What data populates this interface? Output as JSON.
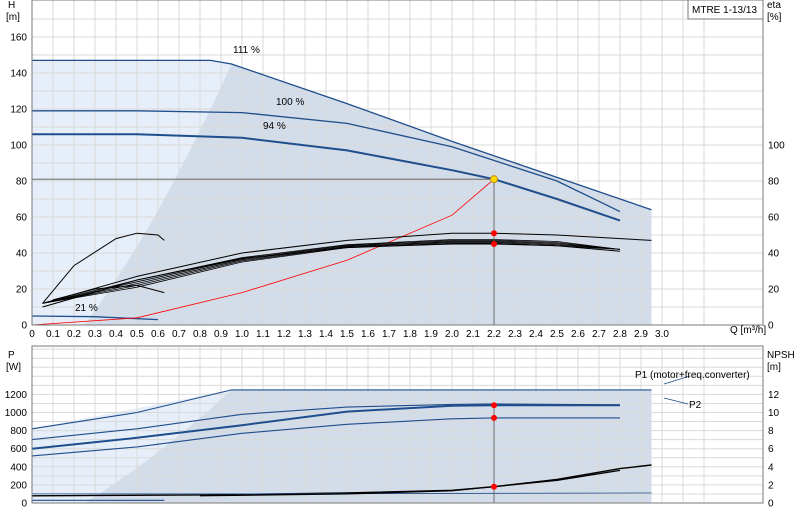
{
  "colors": {
    "curve_dark": "#1f4e8c",
    "curve_mid": "#3b6aa5",
    "region_light": "#e6eef9",
    "region_mid": "#d3dce9",
    "system_curve": "#ff0000",
    "duty_point": "#ff0000",
    "duty_point_yellow": "#ffd700",
    "grid": "#d9d9d9",
    "black": "#000000"
  },
  "chart_data": [
    {
      "type": "line",
      "title": "MTRE 1-13/13",
      "ylabel": "H",
      "yunit": "[m]",
      "y2label": "eta",
      "y2unit": "[%]",
      "xlabel": "Q [m³/h]",
      "xlim": [
        0,
        3.3
      ],
      "ylim": [
        0,
        170
      ],
      "y2lim": [
        0,
        170
      ],
      "grid": true,
      "x_ticks": [
        "0",
        "0.1",
        "0.2",
        "0.3",
        "0.4",
        "0.5",
        "0.6",
        "0.7",
        "0.8",
        "0.9",
        "1.0",
        "1.1",
        "1.2",
        "1.3",
        "1.4",
        "1.5",
        "1.6",
        "1.7",
        "1.8",
        "1.9",
        "2.0",
        "2.1",
        "2.2",
        "2.3",
        "2.4",
        "2.5",
        "2.6",
        "2.7",
        "2.8",
        "2.9",
        "3.0"
      ],
      "y_ticks": [
        "0",
        "20",
        "40",
        "60",
        "80",
        "100",
        "120",
        "140",
        "160"
      ],
      "y2_ticks": [
        "0",
        "20",
        "40",
        "60",
        "80",
        "100"
      ],
      "curve_labels": [
        "111 %",
        "100 %",
        "94 %",
        "21 %"
      ],
      "duty_point": {
        "x": 2.2,
        "head": 81,
        "eta_upper": 51,
        "eta_lower": 45
      },
      "series": [
        {
          "name": "111 %",
          "kind": "head",
          "x": [
            0,
            0.5,
            0.85,
            0.95,
            1.5,
            2.0,
            2.5,
            2.95
          ],
          "y": [
            147,
            147,
            147,
            145,
            123,
            102,
            82,
            64
          ]
        },
        {
          "name": "100 %",
          "kind": "head",
          "x": [
            0,
            0.5,
            1.0,
            1.5,
            2.0,
            2.5,
            2.8
          ],
          "y": [
            119,
            119,
            118,
            112,
            99,
            80,
            63
          ]
        },
        {
          "name": "94 %",
          "kind": "head",
          "x": [
            0,
            0.5,
            1.0,
            1.5,
            2.0,
            2.2,
            2.5,
            2.8
          ],
          "y": [
            106,
            106,
            104,
            97,
            86,
            81,
            70,
            58
          ]
        },
        {
          "name": "21 %",
          "kind": "head",
          "x": [
            0,
            0.3,
            0.6
          ],
          "y": [
            5,
            4.6,
            3
          ]
        },
        {
          "kind": "system",
          "x": [
            0,
            0.5,
            1.0,
            1.5,
            2.0,
            2.2
          ],
          "y": [
            0,
            4,
            18,
            36,
            61,
            81
          ]
        },
        {
          "kind": "eta",
          "x": [
            0.05,
            0.2,
            0.4,
            0.5,
            0.6,
            0.63
          ],
          "y": [
            12,
            33,
            48,
            51,
            50,
            47
          ]
        },
        {
          "kind": "eta",
          "x": [
            0.05,
            0.5,
            1.0,
            1.5,
            2.0,
            2.2,
            2.5,
            2.95
          ],
          "y": [
            12,
            27,
            40,
            47,
            51,
            51,
            50,
            47
          ]
        },
        {
          "kind": "eta",
          "x": [
            0.05,
            0.5,
            1.0,
            1.5,
            2.0,
            2.2,
            2.5,
            2.8
          ],
          "y": [
            10,
            25,
            37,
            43,
            45,
            45,
            44,
            41
          ]
        },
        {
          "kind": "eta",
          "x": [
            0.1,
            0.3,
            0.5,
            0.63
          ],
          "y": [
            14,
            20,
            22,
            18
          ]
        }
      ]
    },
    {
      "type": "line",
      "ylabel": "P",
      "yunit": "[W]",
      "y2label": "NPSH",
      "y2unit": "[m]",
      "xlim": [
        0,
        3.3
      ],
      "ylim": [
        0,
        1400
      ],
      "y2lim": [
        0,
        14
      ],
      "grid": true,
      "y_ticks": [
        "0",
        "200",
        "400",
        "600",
        "800",
        "1000",
        "1200"
      ],
      "y2_ticks": [
        "0",
        "2",
        "4",
        "6",
        "8",
        "10",
        "12"
      ],
      "legend": [
        "P1 (motor+freq.converter)",
        "P2"
      ],
      "duty_point": {
        "x": 2.2,
        "p1": 1080,
        "p2": 940,
        "npsh": 1.8
      },
      "series": [
        {
          "name": "P1 (motor+freq.converter)",
          "kind": "power",
          "x": [
            0,
            0.5,
            0.95,
            1.5,
            2.0,
            2.2,
            2.95
          ],
          "y": [
            820,
            1000,
            1250,
            1250,
            1250,
            1250,
            1250
          ]
        },
        {
          "kind": "power",
          "x": [
            0,
            0.5,
            1.0,
            1.5,
            2.0,
            2.2,
            2.8
          ],
          "y": [
            700,
            820,
            980,
            1060,
            1090,
            1095,
            1085
          ]
        },
        {
          "kind": "power",
          "x": [
            0,
            0.5,
            1.0,
            1.5,
            2.0,
            2.2,
            2.8
          ],
          "y": [
            600,
            720,
            860,
            1010,
            1075,
            1080,
            1080
          ]
        },
        {
          "name": "P2",
          "kind": "power",
          "x": [
            0,
            0.5,
            1.0,
            1.5,
            2.0,
            2.2,
            2.8
          ],
          "y": [
            520,
            620,
            770,
            870,
            930,
            940,
            940
          ]
        },
        {
          "kind": "power",
          "x": [
            0,
            0.63
          ],
          "y": [
            30,
            30
          ]
        },
        {
          "kind": "npsh",
          "x": [
            0,
            0.8,
            1.5,
            2.0,
            2.2,
            2.5,
            2.8,
            2.95
          ],
          "y": [
            0.8,
            0.9,
            1.1,
            1.4,
            1.8,
            2.6,
            3.8,
            4.2
          ]
        }
      ]
    }
  ]
}
